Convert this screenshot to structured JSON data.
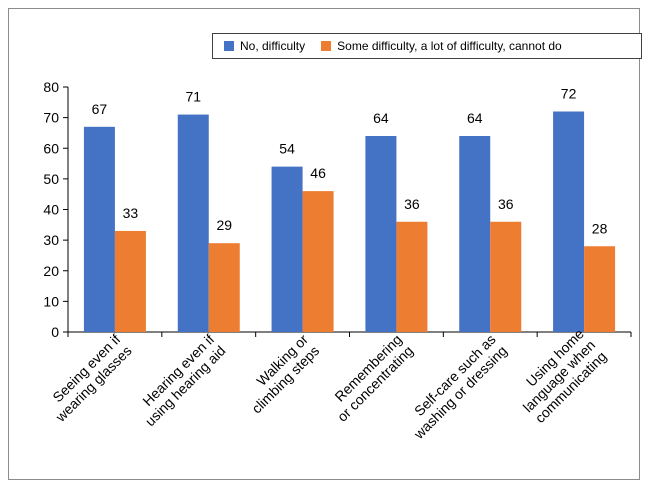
{
  "chart_data": {
    "type": "bar",
    "title": "",
    "xlabel": "",
    "ylabel": "",
    "ylim": [
      0,
      80
    ],
    "yticks": [
      0,
      10,
      20,
      30,
      40,
      50,
      60,
      70,
      80
    ],
    "grid": false,
    "legend_position": "top-right",
    "categories": [
      [
        "Seeing even if",
        "wearing glasses"
      ],
      [
        "Hearing even if",
        "using hearing aid"
      ],
      [
        "Walking or",
        "climbing steps"
      ],
      [
        "Remembering",
        "or concentrating"
      ],
      [
        "Self-care such as",
        "washing or dressing"
      ],
      [
        "Using home",
        "language when",
        "communicating"
      ]
    ],
    "series": [
      {
        "name": "No, difficulty",
        "color": "#4472C4",
        "values": [
          67,
          71,
          54,
          64,
          64,
          72
        ]
      },
      {
        "name": "Some difficulty, a lot of difficulty, cannot do",
        "color": "#ED7D31",
        "values": [
          33,
          29,
          46,
          36,
          36,
          28
        ]
      }
    ]
  }
}
